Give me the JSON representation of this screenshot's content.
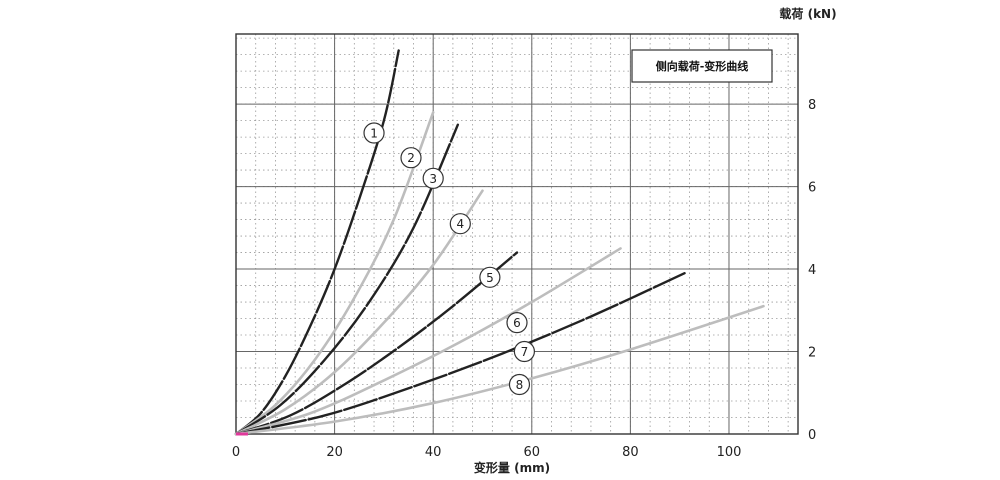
{
  "chart_data": {
    "type": "line",
    "title": "侧向载荷-变形曲线",
    "xlabel": "变形量 (mm)",
    "ylabel": "载荷 (kN)",
    "xlim": [
      0,
      114
    ],
    "ylim": [
      0,
      9.7
    ],
    "x_ticks": [
      0,
      20,
      40,
      60,
      80,
      100
    ],
    "y_ticks": [
      0,
      2,
      4,
      6,
      8
    ],
    "grid": true,
    "legend": "none",
    "colors": {
      "dark": "#222222",
      "light": "#bdbdbd",
      "origin_marker": "#e0399b"
    },
    "series": [
      {
        "name": "1",
        "style": "dark",
        "points": [
          [
            0,
            0
          ],
          [
            5,
            0.5
          ],
          [
            10,
            1.4
          ],
          [
            15,
            2.6
          ],
          [
            20,
            4.0
          ],
          [
            25,
            5.7
          ],
          [
            30,
            7.6
          ],
          [
            33,
            9.3
          ]
        ]
      },
      {
        "name": "2",
        "style": "light",
        "points": [
          [
            0,
            0
          ],
          [
            8,
            0.7
          ],
          [
            16,
            1.8
          ],
          [
            24,
            3.3
          ],
          [
            32,
            5.2
          ],
          [
            40,
            7.8
          ]
        ]
      },
      {
        "name": "3",
        "style": "dark",
        "points": [
          [
            0,
            0
          ],
          [
            9,
            0.7
          ],
          [
            18,
            1.8
          ],
          [
            27,
            3.2
          ],
          [
            36,
            5.0
          ],
          [
            45,
            7.5
          ]
        ]
      },
      {
        "name": "4",
        "style": "light",
        "points": [
          [
            0,
            0
          ],
          [
            10,
            0.6
          ],
          [
            20,
            1.5
          ],
          [
            30,
            2.7
          ],
          [
            40,
            4.1
          ],
          [
            50,
            5.9
          ]
        ]
      },
      {
        "name": "5",
        "style": "dark",
        "points": [
          [
            0,
            0
          ],
          [
            11,
            0.45
          ],
          [
            22,
            1.2
          ],
          [
            33,
            2.1
          ],
          [
            44,
            3.1
          ],
          [
            57,
            4.4
          ]
        ]
      },
      {
        "name": "6",
        "style": "light",
        "points": [
          [
            0,
            0
          ],
          [
            15,
            0.5
          ],
          [
            30,
            1.3
          ],
          [
            45,
            2.2
          ],
          [
            60,
            3.2
          ],
          [
            78,
            4.5
          ]
        ]
      },
      {
        "name": "7",
        "style": "dark",
        "points": [
          [
            0,
            0
          ],
          [
            18,
            0.45
          ],
          [
            36,
            1.15
          ],
          [
            54,
            1.95
          ],
          [
            72,
            2.85
          ],
          [
            91,
            3.9
          ]
        ]
      },
      {
        "name": "8",
        "style": "light",
        "points": [
          [
            0,
            0
          ],
          [
            20,
            0.3
          ],
          [
            40,
            0.75
          ],
          [
            60,
            1.35
          ],
          [
            80,
            2.05
          ],
          [
            107,
            3.1
          ]
        ]
      }
    ],
    "annotations": [
      {
        "text": "1",
        "x": 28.0,
        "y": 7.3
      },
      {
        "text": "2",
        "x": 35.5,
        "y": 6.7
      },
      {
        "text": "3",
        "x": 40.0,
        "y": 6.2
      },
      {
        "text": "4",
        "x": 45.5,
        "y": 5.1
      },
      {
        "text": "5",
        "x": 51.5,
        "y": 3.8
      },
      {
        "text": "6",
        "x": 57.0,
        "y": 2.7
      },
      {
        "text": "7",
        "x": 58.5,
        "y": 2.0
      },
      {
        "text": "8",
        "x": 57.5,
        "y": 1.2
      }
    ]
  }
}
